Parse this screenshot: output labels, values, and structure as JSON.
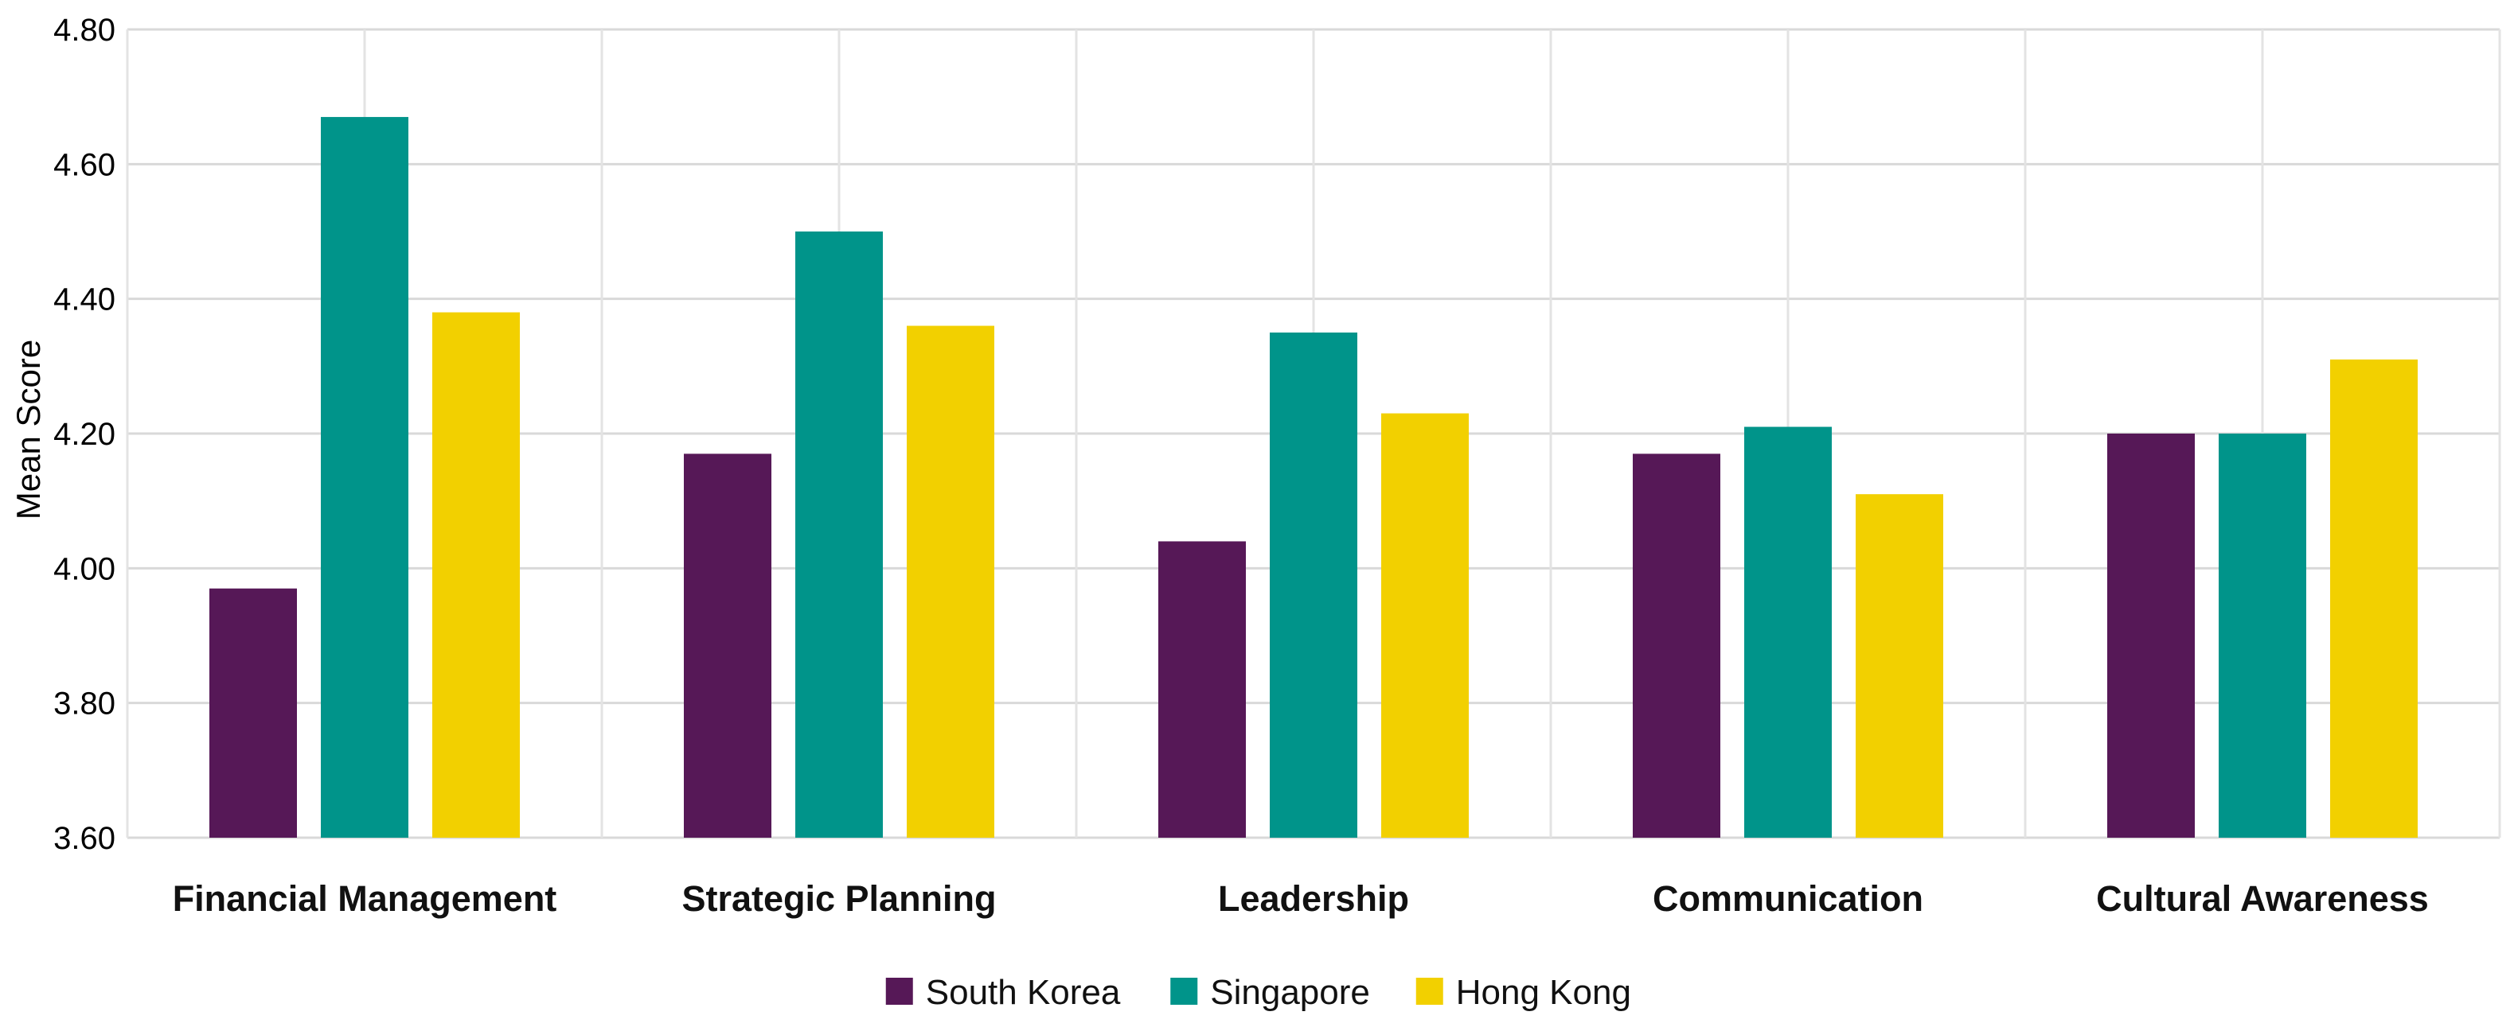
{
  "chart_data": {
    "type": "bar",
    "categories": [
      "Financial Management",
      "Strategic Planning",
      "Leadership",
      "Communication",
      "Cultural Awareness"
    ],
    "series": [
      {
        "name": "South Korea",
        "color": "#561857",
        "values": [
          3.97,
          4.17,
          4.04,
          4.17,
          4.2
        ]
      },
      {
        "name": "Singapore",
        "color": "#00948A",
        "values": [
          4.67,
          4.5,
          4.35,
          4.21,
          4.2
        ]
      },
      {
        "name": "Hong Kong",
        "color": "#F2D000",
        "values": [
          4.38,
          4.36,
          4.23,
          4.11,
          4.31
        ]
      }
    ],
    "title": "",
    "xlabel": "",
    "ylabel": "Mean Score",
    "ylim": [
      3.6,
      4.8
    ],
    "yticks": [
      "3.60",
      "3.80",
      "4.00",
      "4.20",
      "4.40",
      "4.60",
      "4.80"
    ],
    "grid": true,
    "legend_position": "bottom"
  }
}
